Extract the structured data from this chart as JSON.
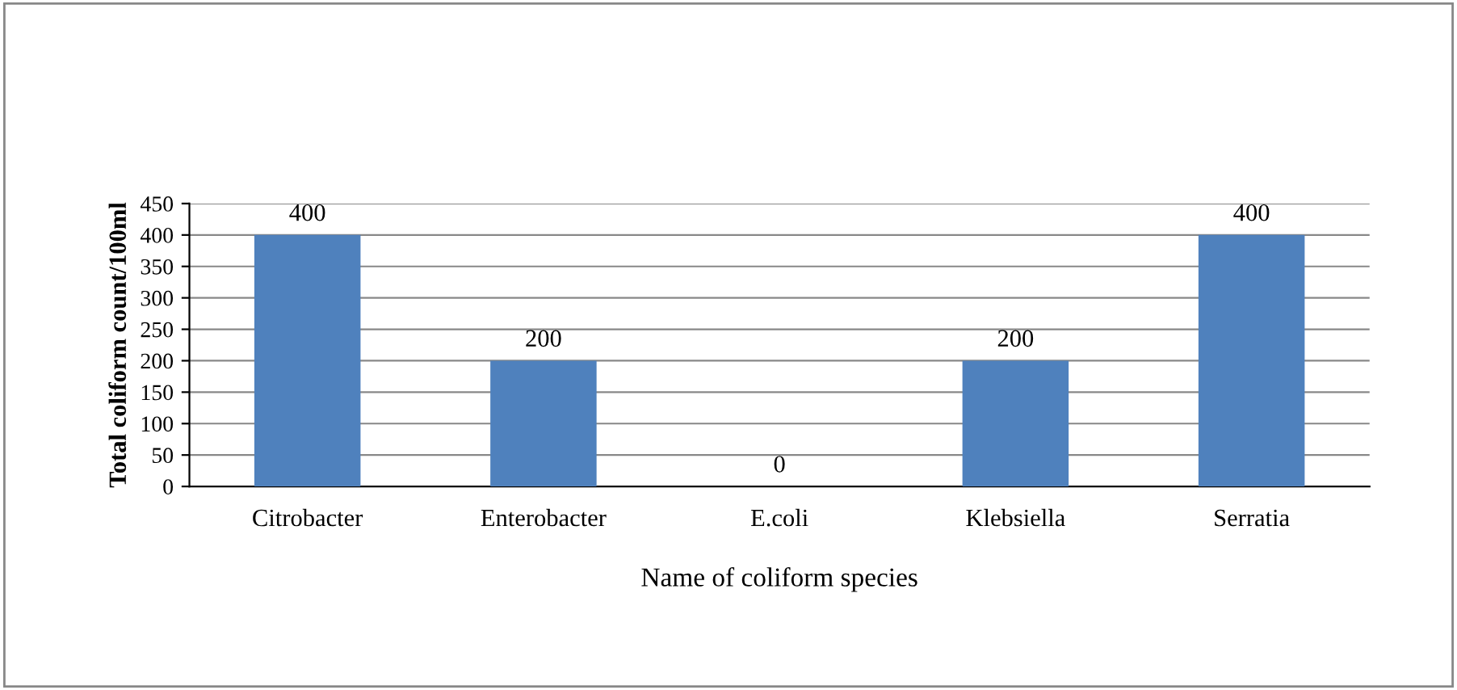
{
  "chart_data": {
    "type": "bar",
    "categories": [
      "Citrobacter",
      "Enterobacter",
      "E.coli",
      "Klebsiella",
      "Serratia"
    ],
    "values": [
      400,
      200,
      0,
      200,
      400
    ],
    "color": "#4f81bd",
    "xlabel": "Name of coliform species",
    "ylabel": "Total coliform count/100ml",
    "ylim": [
      0,
      450
    ],
    "yticks": [
      0,
      50,
      100,
      150,
      200,
      250,
      300,
      350,
      400,
      450
    ],
    "grid": "y",
    "data_labels": true
  }
}
